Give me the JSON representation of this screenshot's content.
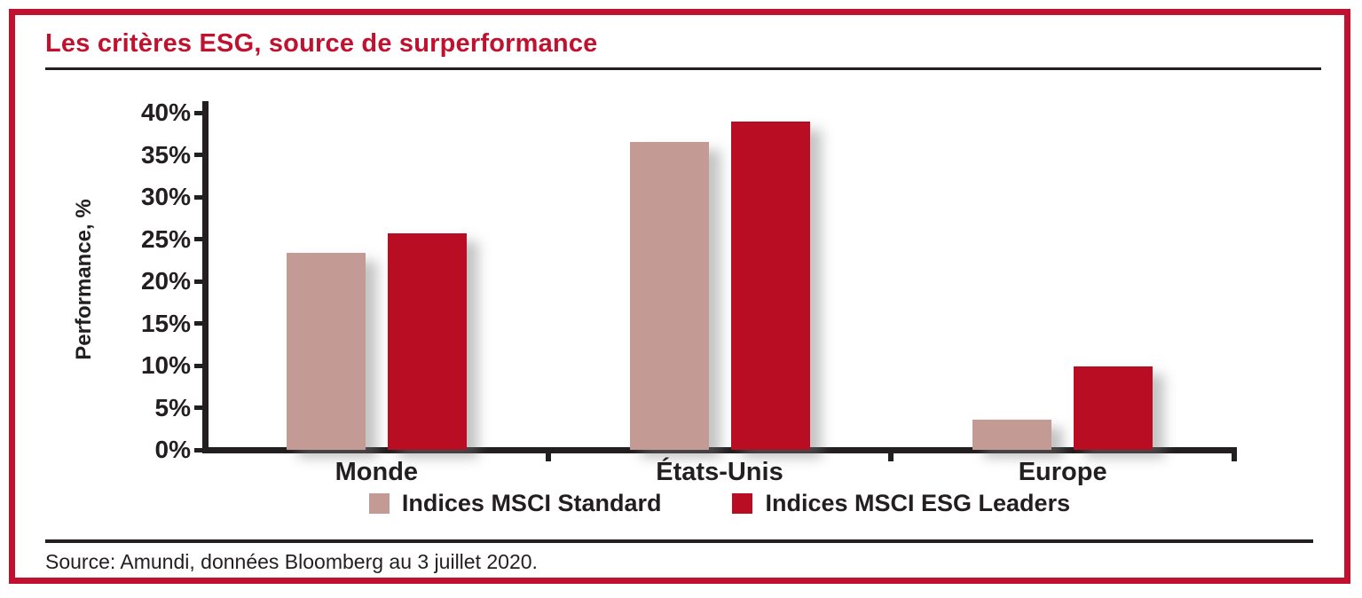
{
  "frame": {
    "border_color": "#C0122E"
  },
  "header": {
    "title": "Les critères ESG, source de surperformance",
    "title_color": "#C0122E"
  },
  "chart_data": {
    "type": "bar",
    "title": "Les critères ESG, source de surperformance",
    "categories": [
      "Monde",
      "États-Unis",
      "Europe"
    ],
    "series": [
      {
        "name": "Indices MSCI Standard",
        "color": "#C49A94",
        "values": [
          23.4,
          36.5,
          3.6
        ]
      },
      {
        "name": "Indices MSCI ESG Leaders",
        "color": "#B80D23",
        "values": [
          25.7,
          38.9,
          9.9
        ]
      }
    ],
    "xlabel": "",
    "ylabel": "Performance, %",
    "ylim": [
      0,
      40
    ],
    "ytick_step": 5,
    "ytick_labels": [
      "0%",
      "5%",
      "10%",
      "15%",
      "20%",
      "25%",
      "30%",
      "35%",
      "40%"
    ],
    "grid": false,
    "legend_position": "bottom-center"
  },
  "footer": {
    "source": "Source: Amundi, données Bloomberg au 3 juillet 2020."
  }
}
